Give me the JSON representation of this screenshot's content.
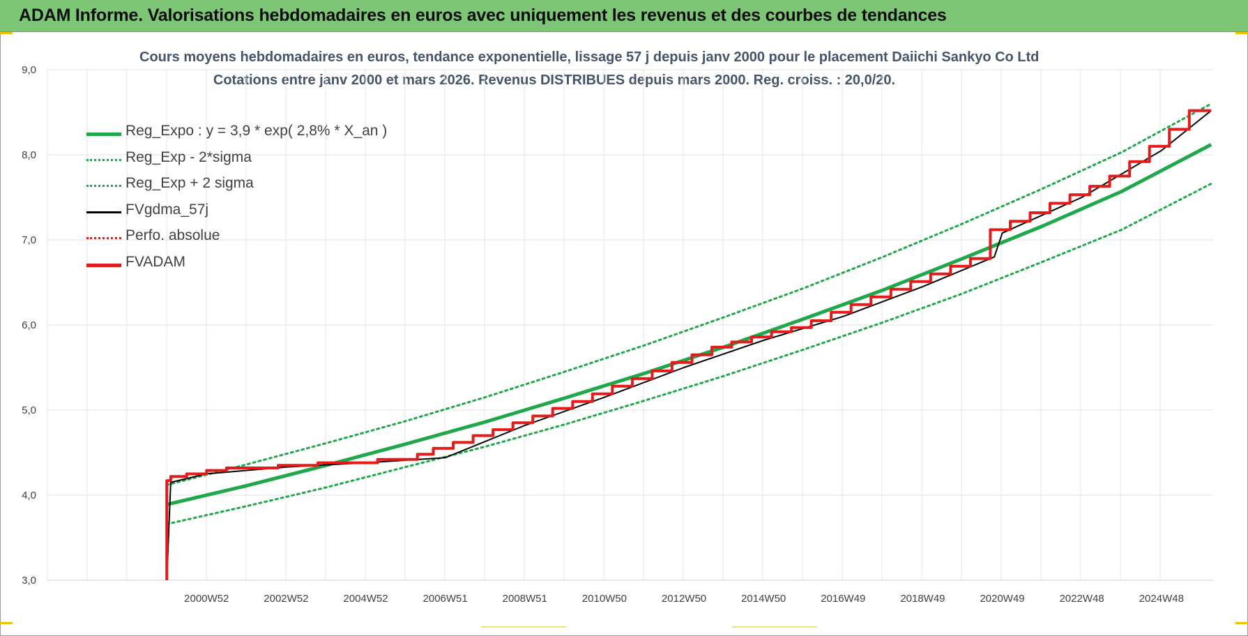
{
  "banner": {
    "title": "ADAM Informe. Valorisations hebdomadaires en euros avec uniquement les revenus et des courbes de tendances"
  },
  "chart_data": {
    "type": "line",
    "title": "Cours moyens hebdomadaires en euros, tendance exponentielle, lissage 57 j depuis janv 2000 pour le placement Daiichi Sankyo Co Ltd",
    "subtitle": "Cotations entre janv 2000 et mars 2026. Revenus DISTRIBUES depuis mars 2000. Reg. croiss. : 20,0/20.",
    "xlabel": "",
    "ylabel": "",
    "ylim": [
      3.0,
      9.0
    ],
    "xlim": [
      1997.0,
      2026.3
    ],
    "y_ticks": [
      "3,0",
      "4,0",
      "5,0",
      "6,0",
      "7,0",
      "8,0",
      "9,0"
    ],
    "x_ticks": [
      {
        "label": "2000W52",
        "x": 2001.0
      },
      {
        "label": "2002W52",
        "x": 2003.0
      },
      {
        "label": "2004W52",
        "x": 2005.0
      },
      {
        "label": "2006W51",
        "x": 2007.0
      },
      {
        "label": "2008W51",
        "x": 2009.0
      },
      {
        "label": "2010W50",
        "x": 2011.0
      },
      {
        "label": "2012W50",
        "x": 2013.0
      },
      {
        "label": "2014W50",
        "x": 2015.0
      },
      {
        "label": "2016W49",
        "x": 2017.0
      },
      {
        "label": "2018W49",
        "x": 2019.0
      },
      {
        "label": "2020W49",
        "x": 2021.0
      },
      {
        "label": "2022W48",
        "x": 2023.0
      },
      {
        "label": "2024W48",
        "x": 2025.0
      }
    ],
    "grid": true,
    "legend_position": "top-left",
    "series": [
      {
        "name": "Reg_Expo : y = 3,9 * exp( 2,8% *  X_an )",
        "color": "#1fa84a",
        "style": "solid",
        "x": [
          2000.0,
          2002.0,
          2004.0,
          2006.0,
          2008.0,
          2010.0,
          2012.0,
          2014.0,
          2016.0,
          2018.0,
          2020.0,
          2022.0,
          2024.0,
          2026.25
        ],
        "y": [
          3.89,
          4.11,
          4.35,
          4.6,
          4.86,
          5.14,
          5.43,
          5.74,
          6.07,
          6.41,
          6.78,
          7.16,
          7.57,
          8.12
        ]
      },
      {
        "name": "Reg_Exp - 2*sigma",
        "color": "#1fa84a",
        "style": "dotted",
        "x": [
          2000.0,
          2002.0,
          2004.0,
          2006.0,
          2008.0,
          2010.0,
          2012.0,
          2014.0,
          2016.0,
          2018.0,
          2020.0,
          2022.0,
          2024.0,
          2026.25
        ],
        "y": [
          3.66,
          3.87,
          4.09,
          4.33,
          4.57,
          4.83,
          5.11,
          5.4,
          5.71,
          6.03,
          6.37,
          6.74,
          7.12,
          7.66
        ]
      },
      {
        "name": "Reg_Exp + 2 sigma",
        "color": "#1fa84a",
        "style": "dotted",
        "x": [
          2000.0,
          2002.0,
          2004.0,
          2006.0,
          2008.0,
          2010.0,
          2012.0,
          2014.0,
          2016.0,
          2018.0,
          2020.0,
          2022.0,
          2024.0,
          2026.25
        ],
        "y": [
          4.12,
          4.36,
          4.61,
          4.87,
          5.15,
          5.45,
          5.76,
          6.09,
          6.43,
          6.8,
          7.19,
          7.6,
          8.03,
          8.6
        ]
      },
      {
        "name": "FVgdma_57j",
        "color": "#000000",
        "style": "solid",
        "x": [
          2000.0,
          2000.1,
          2001.0,
          2003.0,
          2005.0,
          2007.0,
          2009.0,
          2011.0,
          2013.0,
          2015.0,
          2017.0,
          2019.0,
          2020.8,
          2021.0,
          2023.0,
          2025.0,
          2026.25
        ],
        "y": [
          3.0,
          4.15,
          4.25,
          4.33,
          4.38,
          4.44,
          4.82,
          5.15,
          5.5,
          5.82,
          6.1,
          6.45,
          6.8,
          7.08,
          7.5,
          8.05,
          8.52
        ]
      },
      {
        "name": "Perfo. absolue",
        "color": "#e31b1b",
        "style": "dotted",
        "x": [],
        "y": []
      },
      {
        "name": "FVADAM",
        "color": "#e31b1b",
        "style": "solid",
        "x": [
          2000.0,
          2000.0,
          2000.1,
          2000.1,
          2000.5,
          2000.5,
          2001.0,
          2001.0,
          2001.5,
          2001.5,
          2002.8,
          2002.8,
          2003.8,
          2003.8,
          2005.3,
          2005.3,
          2006.3,
          2006.3,
          2006.7,
          2006.7,
          2007.2,
          2007.2,
          2007.7,
          2007.7,
          2008.2,
          2008.2,
          2008.7,
          2008.7,
          2009.2,
          2009.2,
          2009.7,
          2009.7,
          2010.2,
          2010.2,
          2010.7,
          2010.7,
          2011.2,
          2011.2,
          2011.7,
          2011.7,
          2012.2,
          2012.2,
          2012.7,
          2012.7,
          2013.2,
          2013.2,
          2013.7,
          2013.7,
          2014.2,
          2014.2,
          2014.7,
          2014.7,
          2015.2,
          2015.2,
          2015.7,
          2015.7,
          2016.2,
          2016.2,
          2016.7,
          2016.7,
          2017.2,
          2017.2,
          2017.7,
          2017.7,
          2018.2,
          2018.2,
          2018.7,
          2018.7,
          2019.2,
          2019.2,
          2019.7,
          2019.7,
          2020.2,
          2020.2,
          2020.7,
          2020.7,
          2021.2,
          2021.2,
          2021.7,
          2021.7,
          2022.2,
          2022.2,
          2022.7,
          2022.7,
          2023.2,
          2023.2,
          2023.7,
          2023.7,
          2024.2,
          2024.2,
          2024.7,
          2024.7,
          2025.2,
          2025.2,
          2025.7,
          2025.7,
          2026.25
        ],
        "y": [
          3.0,
          4.17,
          4.17,
          4.22,
          4.22,
          4.25,
          4.25,
          4.29,
          4.29,
          4.32,
          4.32,
          4.35,
          4.35,
          4.38,
          4.38,
          4.42,
          4.42,
          4.48,
          4.48,
          4.55,
          4.55,
          4.62,
          4.62,
          4.7,
          4.7,
          4.77,
          4.77,
          4.85,
          4.85,
          4.93,
          4.93,
          5.02,
          5.02,
          5.1,
          5.1,
          5.19,
          5.19,
          5.28,
          5.28,
          5.37,
          5.37,
          5.46,
          5.46,
          5.56,
          5.56,
          5.65,
          5.65,
          5.74,
          5.74,
          5.8,
          5.8,
          5.86,
          5.86,
          5.92,
          5.92,
          5.97,
          5.97,
          6.05,
          6.05,
          6.15,
          6.15,
          6.24,
          6.24,
          6.33,
          6.33,
          6.42,
          6.42,
          6.51,
          6.51,
          6.6,
          6.6,
          6.69,
          6.69,
          6.78,
          6.78,
          7.12,
          7.12,
          7.22,
          7.22,
          7.32,
          7.32,
          7.43,
          7.43,
          7.53,
          7.53,
          7.63,
          7.63,
          7.75,
          7.75,
          7.92,
          7.92,
          8.1,
          8.1,
          8.3,
          8.3,
          8.52,
          8.52
        ]
      }
    ]
  }
}
